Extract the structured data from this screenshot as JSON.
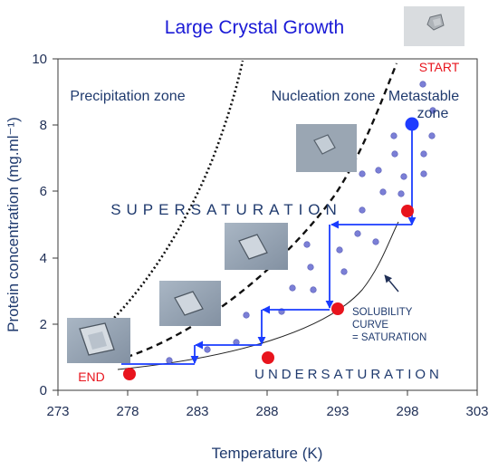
{
  "title": "Large Crystal Growth",
  "x_axis": {
    "label": "Temperature (K)",
    "ticks": [
      "273",
      "278",
      "283",
      "288",
      "293",
      "298",
      "303"
    ]
  },
  "y_axis": {
    "label": "Protein concentration (mg.ml⁻¹)",
    "ticks": [
      "0",
      "2",
      "4",
      "6",
      "8",
      "10"
    ]
  },
  "zones": {
    "precipitation": "Precipitation zone",
    "nucleation": "Nucleation zone",
    "metastable_line1": "Metastable",
    "metastable_line2": "zone"
  },
  "regions": {
    "supersaturation": "SUPERSATURATION",
    "undersaturation": "UNDERSATURATION"
  },
  "markers": {
    "start": "START",
    "end": "END"
  },
  "solubility": {
    "line1": "SOLUBILITY",
    "line2": "CURVE",
    "line3": "= SATURATION"
  },
  "colors": {
    "title": "#1a1ad6",
    "arrow": "#1a3cff",
    "red_dot": "#e8141d",
    "blue_dot": "#1f3cff",
    "light_dots": "#7b7fd6",
    "text": "#1f3a6e"
  },
  "icons": {
    "crystal_photo": "crystal-photo-icon"
  }
}
